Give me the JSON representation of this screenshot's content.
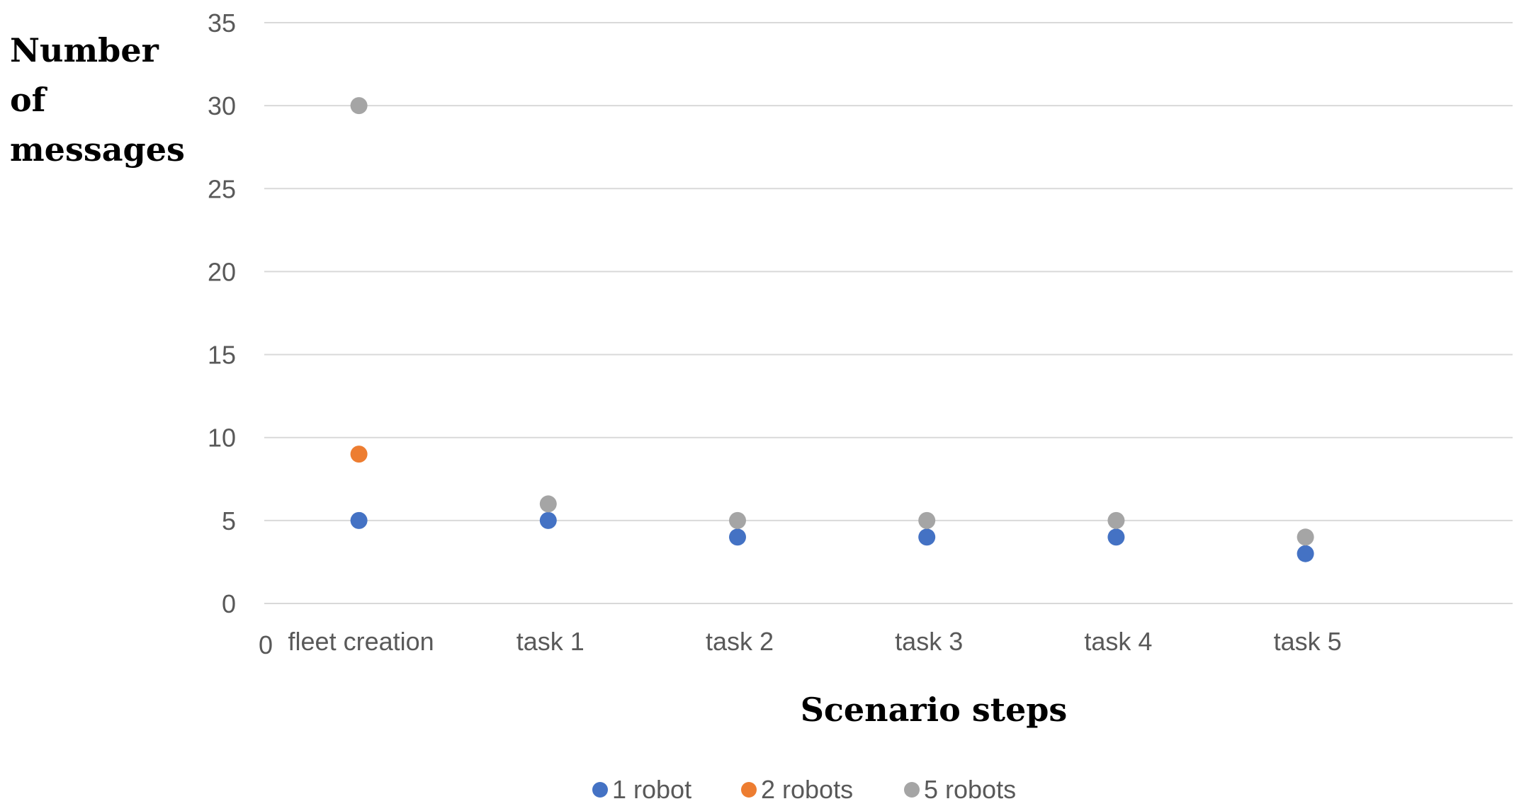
{
  "chart_data": {
    "type": "scatter",
    "ylabel_lines": [
      "Number",
      "of",
      "messages"
    ],
    "xlabel": "Scenario steps",
    "ylim": [
      0,
      35
    ],
    "yticks": [
      0,
      5,
      10,
      15,
      20,
      25,
      30,
      35
    ],
    "grid": true,
    "x_origin_label": "0",
    "categories": [
      "fleet creation",
      "task 1",
      "task 2",
      "task 3",
      "task 4",
      "task 5"
    ],
    "legend_position": "bottom",
    "series": [
      {
        "name": "1 robot",
        "color": "#4472c4",
        "values": [
          5,
          5,
          4,
          4,
          4,
          3
        ]
      },
      {
        "name": "2 robots",
        "color": "#ed7d31",
        "values": [
          9,
          null,
          null,
          null,
          null,
          null
        ]
      },
      {
        "name": "5 robots",
        "color": "#a5a5a5",
        "values": [
          30,
          6,
          5,
          5,
          5,
          4
        ]
      }
    ]
  }
}
